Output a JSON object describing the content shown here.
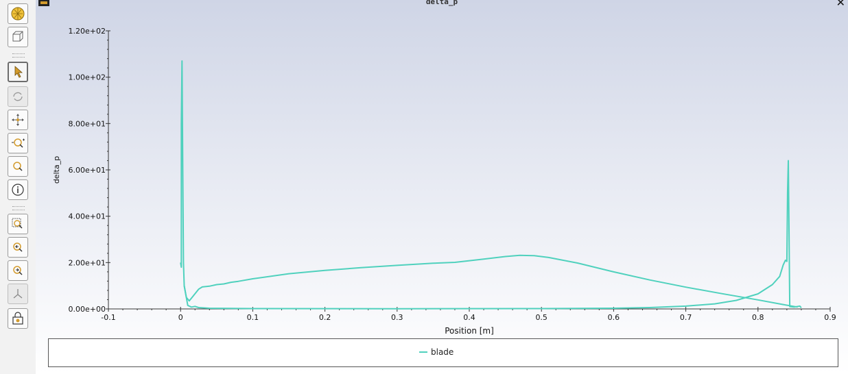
{
  "window": {
    "title": "delta_p",
    "close_symbol": "✕"
  },
  "toolbar": {
    "buttons": [
      {
        "icon": "fit-to-window-icon"
      },
      {
        "icon": "view-cube-icon"
      },
      {
        "icon": "select-arrow-icon",
        "active": true
      },
      {
        "icon": "rotate-icon",
        "disabled": true
      },
      {
        "icon": "pan-icon"
      },
      {
        "icon": "zoom-in-out-icon"
      },
      {
        "icon": "zoom-icon"
      },
      {
        "icon": "probe-info-icon"
      },
      {
        "icon": "zoom-box-icon"
      },
      {
        "icon": "zoom-previous-icon"
      },
      {
        "icon": "zoom-next-icon"
      },
      {
        "icon": "axes-icon",
        "disabled": true
      },
      {
        "icon": "lock-view-icon"
      }
    ]
  },
  "chart_data": {
    "type": "line",
    "title": "delta_p",
    "xlabel": "Position [m]",
    "ylabel": "delta_p",
    "xlim": [
      -0.1,
      0.9
    ],
    "ylim": [
      0,
      120
    ],
    "x_ticks": [
      "-0.1",
      "0",
      "0.1",
      "0.2",
      "0.3",
      "0.4",
      "0.5",
      "0.6",
      "0.7",
      "0.8",
      "0.9"
    ],
    "y_ticks": [
      "0.00e+00",
      "2.00e+01",
      "4.00e+01",
      "6.00e+01",
      "8.00e+01",
      "1.00e+02",
      "1.20e+02"
    ],
    "grid": false,
    "legend_position": "bottom",
    "line_color": "#4fd1bd",
    "series": [
      {
        "name": "blade",
        "segments": [
          [
            [
              0.0,
              20
            ],
            [
              0.001,
              18
            ],
            [
              0.001,
              80
            ],
            [
              0.002,
              107
            ],
            [
              0.003,
              60
            ],
            [
              0.004,
              20
            ],
            [
              0.005,
              10
            ],
            [
              0.008,
              5
            ],
            [
              0.012,
              3.5
            ],
            [
              0.016,
              5
            ],
            [
              0.025,
              8.5
            ],
            [
              0.03,
              9.5
            ],
            [
              0.04,
              9.8
            ],
            [
              0.05,
              10.5
            ],
            [
              0.06,
              10.8
            ],
            [
              0.07,
              11.5
            ],
            [
              0.08,
              11.9
            ],
            [
              0.1,
              13
            ],
            [
              0.15,
              15.2
            ],
            [
              0.2,
              16.6
            ],
            [
              0.25,
              17.8
            ],
            [
              0.3,
              18.8
            ],
            [
              0.35,
              19.7
            ],
            [
              0.38,
              20.1
            ],
            [
              0.42,
              21.5
            ],
            [
              0.45,
              22.6
            ],
            [
              0.47,
              23.1
            ],
            [
              0.49,
              23
            ],
            [
              0.51,
              22.2
            ],
            [
              0.55,
              19.8
            ],
            [
              0.6,
              16
            ],
            [
              0.65,
              12.5
            ],
            [
              0.7,
              9.4
            ],
            [
              0.75,
              6.6
            ],
            [
              0.8,
              3.9
            ],
            [
              0.835,
              1.9
            ],
            [
              0.855,
              0.8
            ]
          ],
          [
            [
              0.005,
              10
            ],
            [
              0.01,
              1.5
            ],
            [
              0.015,
              0.8
            ],
            [
              0.02,
              1.1
            ],
            [
              0.025,
              0.6
            ],
            [
              0.04,
              0.3
            ],
            [
              0.1,
              0.15
            ],
            [
              0.3,
              0.1
            ],
            [
              0.5,
              0.15
            ],
            [
              0.6,
              0.3
            ],
            [
              0.65,
              0.6
            ],
            [
              0.7,
              1.2
            ],
            [
              0.74,
              2.2
            ],
            [
              0.77,
              3.7
            ],
            [
              0.8,
              6.5
            ],
            [
              0.82,
              10.5
            ],
            [
              0.83,
              14
            ],
            [
              0.835,
              19
            ],
            [
              0.838,
              21
            ],
            [
              0.84,
              20.5
            ],
            [
              0.841,
              50
            ],
            [
              0.842,
              64
            ],
            [
              0.843,
              35
            ],
            [
              0.844,
              1
            ],
            [
              0.85,
              0.8
            ],
            [
              0.858,
              1.2
            ],
            [
              0.86,
              0.5
            ]
          ]
        ]
      }
    ]
  }
}
